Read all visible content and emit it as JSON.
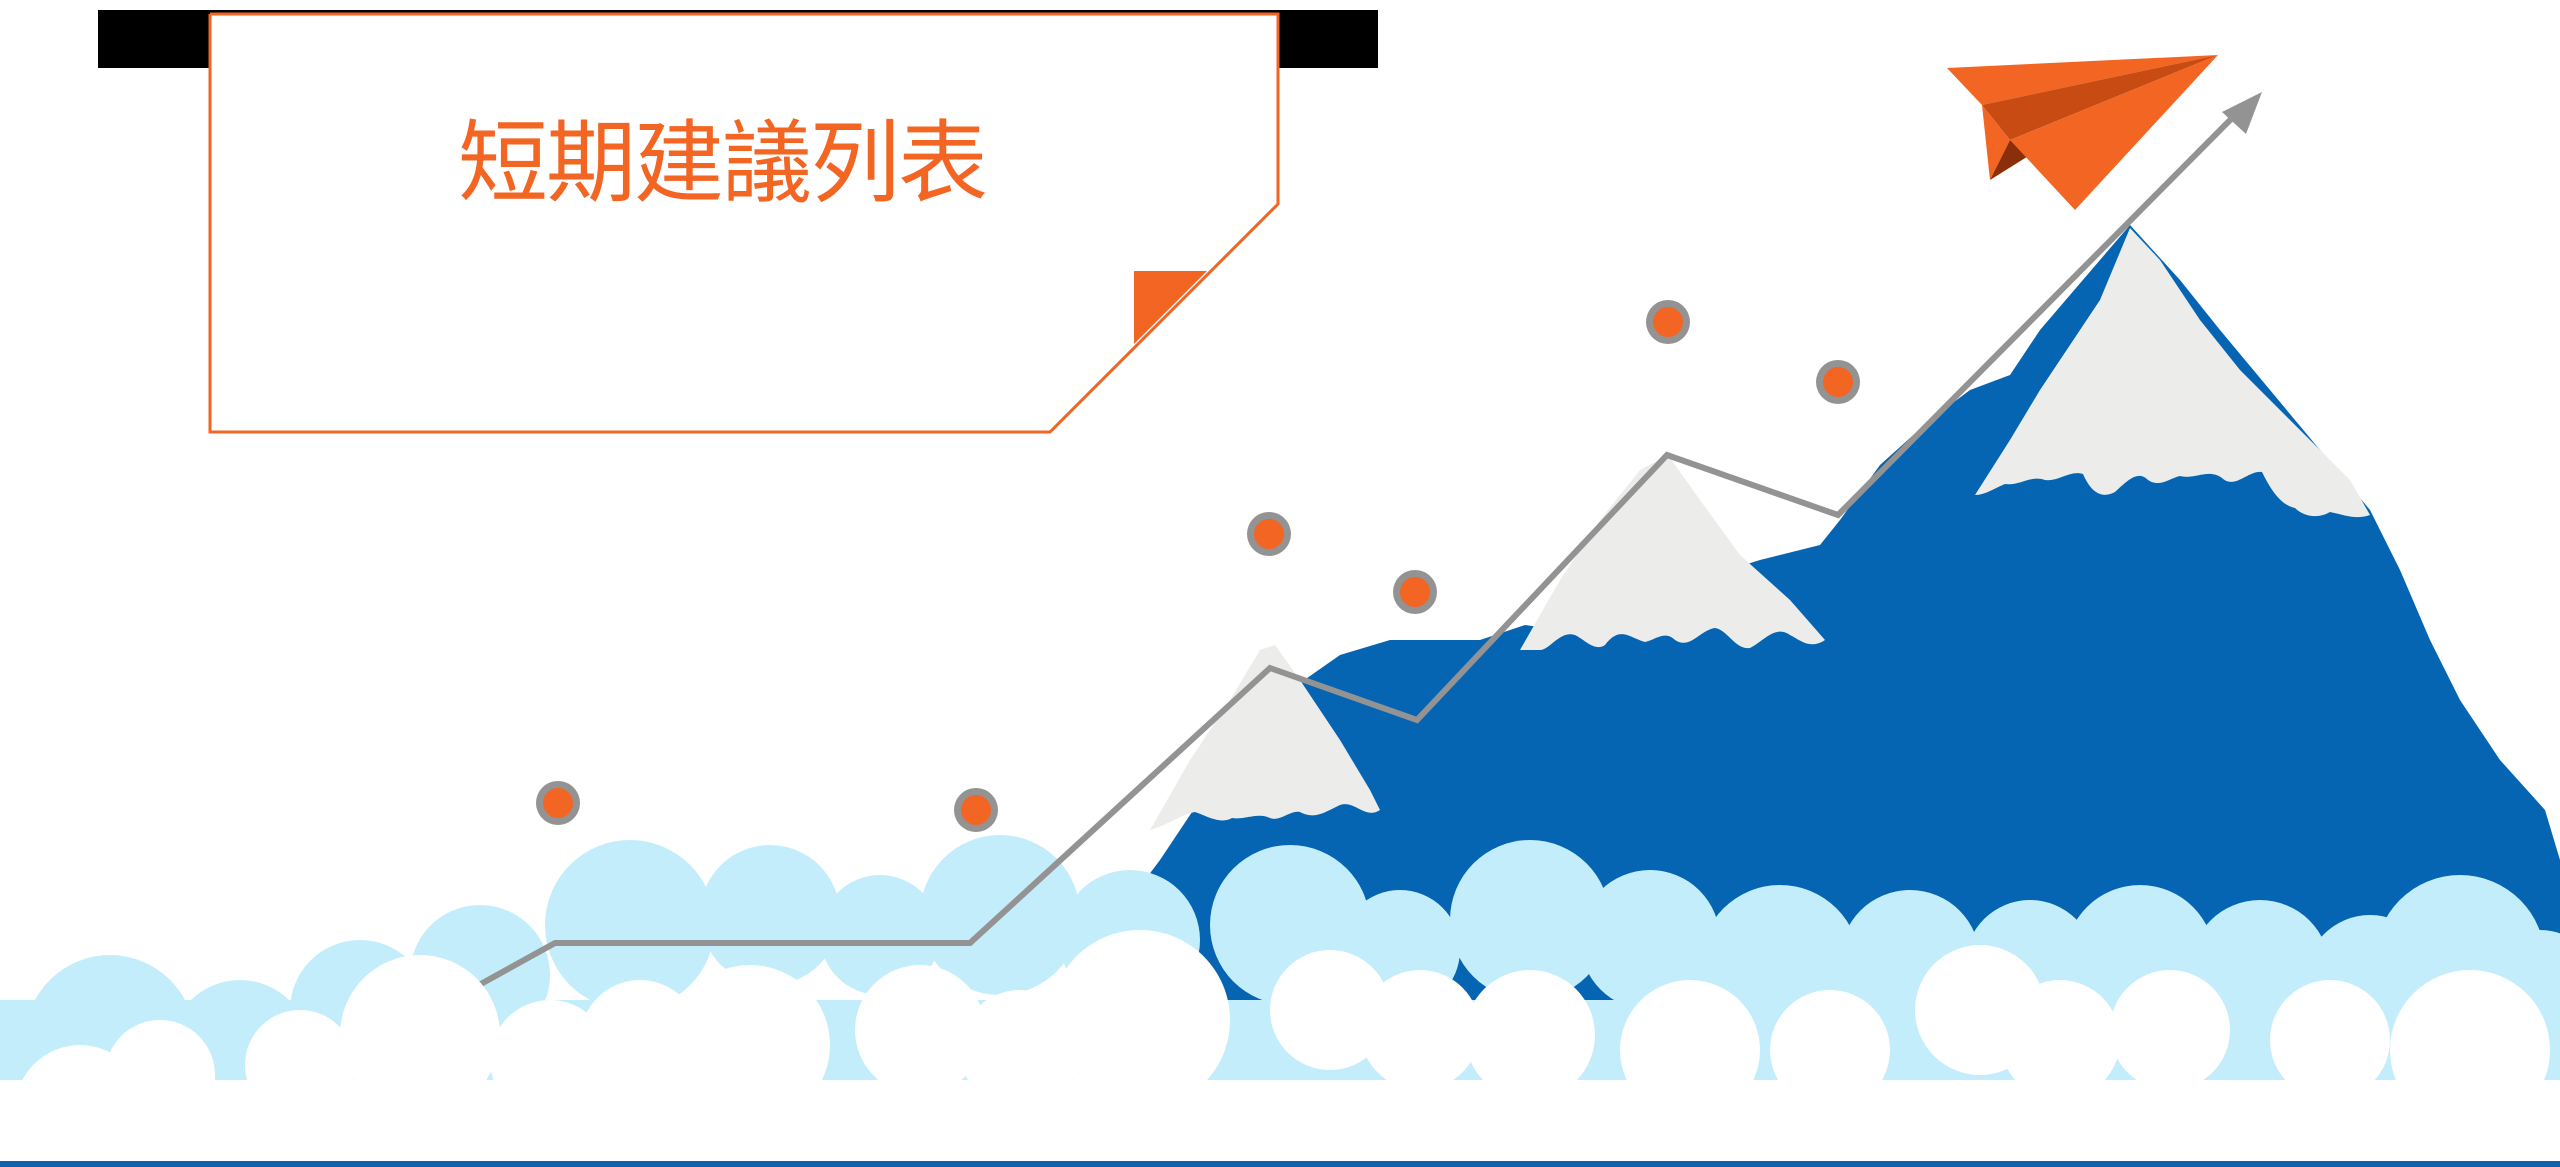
{
  "slide": {
    "title": "短期建議列表"
  },
  "colors": {
    "accent_orange": "#f26522",
    "mountain_blue": "#0565b3",
    "snow_grey": "#ececea",
    "cloud_light_blue": "#c4edfb",
    "line_grey": "#939393",
    "top_bar": "#000000"
  },
  "icons": [
    "paper-plane-icon",
    "arrow-icon"
  ]
}
